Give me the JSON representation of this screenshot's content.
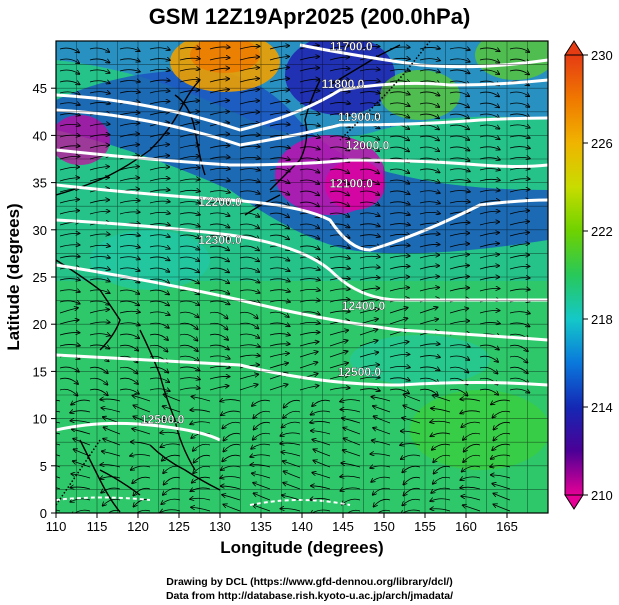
{
  "title": "GSM 12Z19Apr2025 (200.0hPa)",
  "xlabel": "Longitude (degrees)",
  "ylabel": "Latitude  (degrees)",
  "credits": {
    "line1": "Drawing by DCL (https://www.gfd-dennou.org/library/dcl/)",
    "line2": "Data from http://database.rish.kyoto-u.ac.jp/arch/jmadata/"
  },
  "map": {
    "lon_range": [
      110,
      170
    ],
    "lat_range": [
      0,
      50
    ],
    "lon_ticks": [
      110,
      115,
      120,
      125,
      130,
      135,
      140,
      145,
      150,
      155,
      160,
      165
    ],
    "lat_ticks": [
      0,
      5,
      10,
      15,
      20,
      25,
      30,
      35,
      40,
      45
    ],
    "contour_labels": [
      {
        "text": "11700.0",
        "lon": 146,
        "lat": 49
      },
      {
        "text": "11800.0",
        "lon": 145,
        "lat": 45
      },
      {
        "text": "11900.0",
        "lon": 147,
        "lat": 41.5
      },
      {
        "text": "12000.0",
        "lon": 148,
        "lat": 38.5
      },
      {
        "text": "12100.0",
        "lon": 146,
        "lat": 34.5
      },
      {
        "text": "12200.0",
        "lon": 130,
        "lat": 32.5
      },
      {
        "text": "12300.0",
        "lon": 130,
        "lat": 28.5
      },
      {
        "text": "12400.0",
        "lon": 147.5,
        "lat": 21.5
      },
      {
        "text": "12500.0",
        "lon": 147,
        "lat": 14.5
      },
      {
        "text": "12500.0",
        "lon": 123,
        "lat": 9.5
      }
    ]
  },
  "colorbar": {
    "min": 210,
    "max": 230,
    "tick_labels": [
      "210",
      "214",
      "218",
      "222",
      "226",
      "230"
    ],
    "colors": [
      "#e60096",
      "#4b0096",
      "#1428b4",
      "#0a78dc",
      "#14c8c8",
      "#28c85a",
      "#6ed200",
      "#c8dc00",
      "#f0b400",
      "#f07800",
      "#e63c14"
    ]
  }
}
